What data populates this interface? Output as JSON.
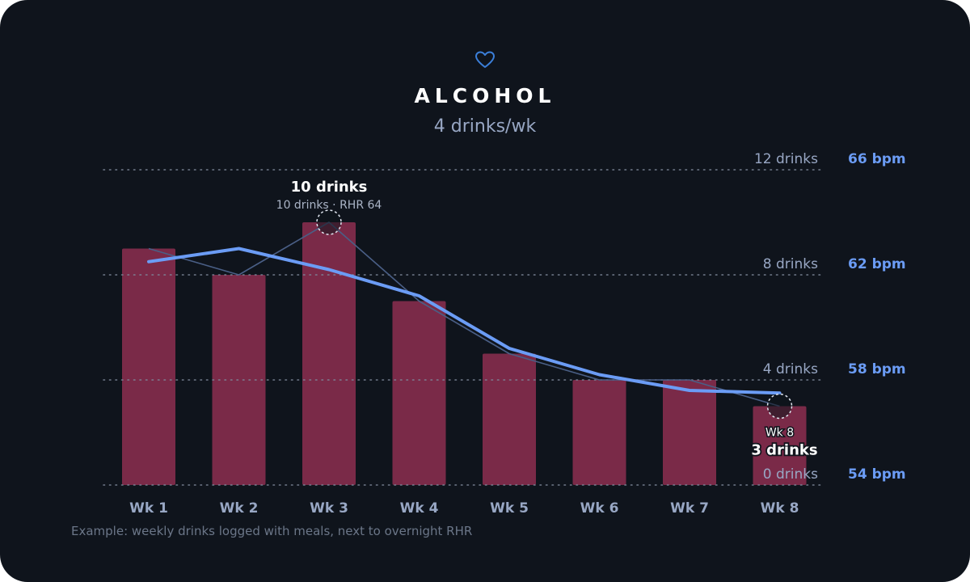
{
  "header": {
    "title": "ALCOHOL",
    "subtitle": "4 drinks/wk",
    "icon": "heart-icon"
  },
  "footnote": "Example: weekly drinks logged with meals, next to overnight RHR",
  "colors": {
    "background": "#0f141c",
    "bar": "#7a2a48",
    "rhr_line": "#6b9cf5",
    "raw_line": "#4a5f86",
    "left_axis_text": "#98a7c4",
    "right_axis_text": "#6b9cf5",
    "heart": "#3b7fd9"
  },
  "chart_data": {
    "type": "bar",
    "categories": [
      "Wk 1",
      "Wk 2",
      "Wk 3",
      "Wk 4",
      "Wk 5",
      "Wk 6",
      "Wk 7",
      "Wk 8"
    ],
    "series": [
      {
        "values": [
          9,
          8,
          10,
          7,
          5,
          4,
          4,
          3
        ],
        "axis": "left",
        "style": "bar"
      },
      {
        "values": [
          63,
          62,
          64,
          61,
          59,
          58,
          58,
          57
        ],
        "axis": "right",
        "style": "thin-line"
      },
      {
        "values": [
          62.5,
          63,
          62.2,
          61.2,
          59.2,
          58.2,
          57.6,
          57.5
        ],
        "axis": "right",
        "style": "thick-line"
      }
    ],
    "left_axis": {
      "ylim": [
        0,
        12
      ],
      "ticks": [
        0,
        4,
        8,
        12
      ],
      "tick_labels": [
        "0 drinks",
        "4 drinks",
        "8 drinks",
        "12 drinks"
      ]
    },
    "right_axis": {
      "ylim": [
        54,
        66
      ],
      "ticks": [
        54,
        58,
        62,
        66
      ],
      "tick_labels": [
        "54 bpm",
        "58 bpm",
        "62 bpm",
        "66 bpm"
      ]
    },
    "grid": "dotted-horizontal",
    "annotations": [
      {
        "category": "Wk 3",
        "headline": "10 drinks",
        "detail": "10 drinks · RHR 64",
        "placement": "above"
      },
      {
        "category": "Wk 8",
        "label": "Wk 8",
        "headline": "3 drinks",
        "placement": "below"
      }
    ]
  }
}
